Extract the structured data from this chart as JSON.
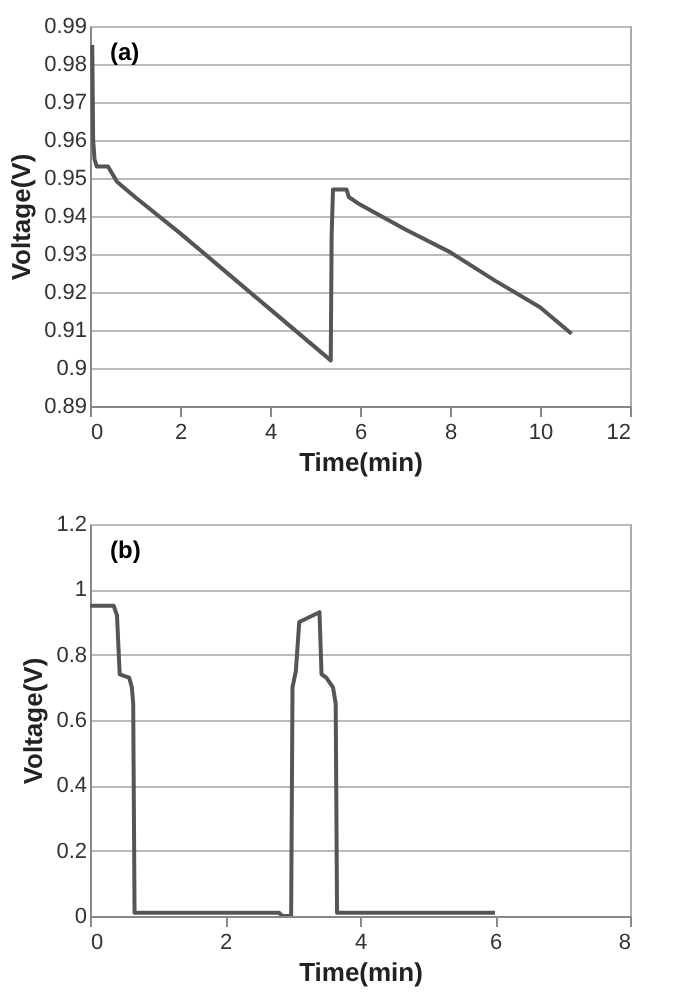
{
  "chart_data": [
    {
      "type": "line",
      "xlabel": "Time(min)",
      "ylabel": "Voltage(V)",
      "annotations": [
        "(a)"
      ],
      "xlim": [
        0,
        12
      ],
      "xticks": [
        0,
        2,
        4,
        6,
        8,
        10,
        12
      ],
      "ylim": [
        0.89,
        0.99
      ],
      "yticks": [
        0.89,
        0.9,
        0.91,
        0.92,
        0.93,
        0.94,
        0.95,
        0.96,
        0.97,
        0.98,
        0.99
      ],
      "grid": "y",
      "line_style": "solid",
      "series": [
        {
          "color": "#555555",
          "x": [
            0.05,
            0.07,
            0.1,
            0.15,
            0.4,
            0.6,
            1,
            2,
            3,
            4,
            5,
            5.35,
            5.37,
            5.4,
            5.7,
            5.75,
            6,
            7,
            8,
            9,
            10,
            10.7
          ],
          "values": [
            0.985,
            0.96,
            0.955,
            0.953,
            0.953,
            0.949,
            0.945,
            0.9355,
            0.9255,
            0.9155,
            0.9055,
            0.902,
            0.935,
            0.947,
            0.947,
            0.945,
            0.943,
            0.9365,
            0.9305,
            0.923,
            0.916,
            0.909
          ]
        }
      ]
    },
    {
      "type": "line",
      "xlabel": "Time(min)",
      "ylabel": "Voltage(V)",
      "annotations": [
        "(b)"
      ],
      "xlim": [
        0,
        8
      ],
      "xticks": [
        0,
        2,
        4,
        6,
        8
      ],
      "ylim": [
        0,
        1.2
      ],
      "yticks": [
        0,
        0.2,
        0.4,
        0.6,
        0.8,
        1,
        1.2
      ],
      "grid": "y",
      "line_style": "solid",
      "series": [
        {
          "color": "#555555",
          "x": [
            0,
            0.35,
            0.4,
            0.44,
            0.58,
            0.62,
            0.64,
            0.66,
            1,
            2,
            2.8,
            2.85,
            2.98,
            3.0,
            3.05,
            3.1,
            3.4,
            3.43,
            3.5,
            3.6,
            3.64,
            3.66,
            4,
            5,
            6
          ],
          "values": [
            0.95,
            0.95,
            0.92,
            0.74,
            0.73,
            0.7,
            0.65,
            0.01,
            0.01,
            0.01,
            0.01,
            0.0,
            0.0,
            0.7,
            0.75,
            0.9,
            0.93,
            0.74,
            0.73,
            0.7,
            0.65,
            0.01,
            0.01,
            0.01,
            0.01
          ]
        }
      ]
    }
  ]
}
